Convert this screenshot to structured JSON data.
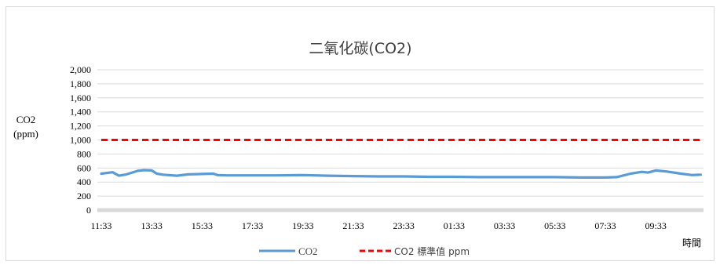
{
  "chart_data": {
    "type": "line",
    "title": "二氧化碳(CO2)",
    "ylabel_line1": "CO2",
    "ylabel_line2": "(ppm)",
    "xlabel": "時間",
    "ylim": [
      0,
      2000
    ],
    "y_ticks": [
      "0",
      "200",
      "400",
      "600",
      "800",
      "1,000",
      "1,200",
      "1,400",
      "1,600",
      "1,800",
      "2,000"
    ],
    "x_tick_labels": [
      "11:33",
      "13:33",
      "15:33",
      "17:33",
      "19:33",
      "21:33",
      "23:33",
      "01:33",
      "03:33",
      "05:33",
      "07:33",
      "09:33"
    ],
    "grid": true,
    "legend_position": "bottom",
    "series": [
      {
        "name": "CO2",
        "color": "#5b9bd5",
        "style": "solid",
        "x": [
          "11:33",
          "12:00",
          "12:15",
          "12:33",
          "13:00",
          "13:15",
          "13:33",
          "13:45",
          "14:00",
          "14:33",
          "15:00",
          "15:33",
          "16:00",
          "16:10",
          "16:33",
          "17:33",
          "18:33",
          "19:33",
          "20:33",
          "21:33",
          "22:33",
          "23:33",
          "00:33",
          "01:33",
          "02:33",
          "03:33",
          "04:33",
          "05:33",
          "06:33",
          "07:33",
          "08:00",
          "08:33",
          "09:00",
          "09:15",
          "09:33",
          "10:00",
          "10:33",
          "11:00",
          "11:20"
        ],
        "values": [
          520,
          540,
          490,
          510,
          560,
          570,
          565,
          520,
          505,
          490,
          510,
          515,
          520,
          500,
          495,
          495,
          495,
          500,
          490,
          485,
          480,
          480,
          475,
          475,
          470,
          470,
          470,
          470,
          465,
          465,
          470,
          520,
          545,
          535,
          565,
          550,
          520,
          500,
          505
        ]
      },
      {
        "name": "CO2 標準值 ppm",
        "color": "#ff0000",
        "style": "dashed",
        "x": [
          "11:33",
          "11:20"
        ],
        "values": [
          1000,
          1000
        ]
      }
    ]
  }
}
